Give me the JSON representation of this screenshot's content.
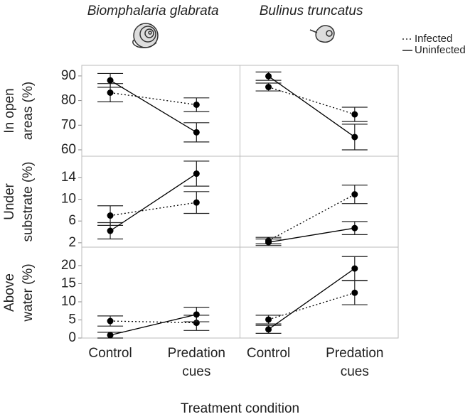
{
  "chart_data": {
    "type": "line",
    "columns": [
      "Biomphalaria glabrata",
      "Bulinus truncatus"
    ],
    "categories": [
      "Control",
      "Predation cues"
    ],
    "xlabel": "Treatment condition",
    "series": [
      {
        "name": "Infected",
        "dash": "dotted",
        "color": "#000000"
      },
      {
        "name": "Uninfected",
        "dash": "solid",
        "color": "#000000"
      }
    ],
    "rows": [
      {
        "ylabel": [
          "In open",
          "areas (%)"
        ],
        "ylim": [
          57.4,
          94.3
        ],
        "yticks": [
          60,
          70,
          80,
          90
        ],
        "panels": [
          {
            "series": [
              {
                "values": [
                  83.2,
                  78.3
                ],
                "errors": [
                  3.7,
                  2.8
                ]
              },
              {
                "values": [
                  88.2,
                  67.1
                ],
                "errors": [
                  2.8,
                  3.9
                ]
              }
            ]
          },
          {
            "series": [
              {
                "values": [
                  85.5,
                  74.4
                ],
                "errors": [
                  1.6,
                  2.9
                ]
              },
              {
                "values": [
                  89.9,
                  65.2
                ],
                "errors": [
                  1.7,
                  5.2
                ]
              }
            ]
          }
        ]
      },
      {
        "ylabel": [
          "Under",
          "substrate (%)"
        ],
        "ylim": [
          1.2,
          17.9
        ],
        "yticks": [
          2,
          6,
          10,
          14
        ],
        "panels": [
          {
            "series": [
              {
                "values": [
                  7.0,
                  9.4
                ],
                "errors": [
                  1.8,
                  2.0
                ]
              },
              {
                "values": [
                  4.2,
                  14.7
                ],
                "errors": [
                  1.5,
                  2.3
                ]
              }
            ]
          },
          {
            "series": [
              {
                "values": [
                  2.4,
                  10.9
                ],
                "errors": [
                  0.6,
                  1.7
                ]
              },
              {
                "values": [
                  2.1,
                  4.7
                ],
                "errors": [
                  0.6,
                  1.2
                ]
              }
            ]
          }
        ]
      },
      {
        "ylabel": [
          "Above",
          "water (%)"
        ],
        "ylim": [
          0,
          25.1
        ],
        "yticks": [
          0,
          5,
          10,
          15,
          20
        ],
        "panels": [
          {
            "series": [
              {
                "values": [
                  4.7,
                  4.2
                ],
                "errors": [
                  1.4,
                  2.1
                ]
              },
              {
                "values": [
                  0.8,
                  6.5
                ],
                "errors": [
                  0.8,
                  2.0
                ]
              }
            ]
          },
          {
            "series": [
              {
                "values": [
                  5.1,
                  12.5
                ],
                "errors": [
                  1.2,
                  3.3
                ]
              },
              {
                "values": [
                  2.4,
                  19.2
                ],
                "errors": [
                  1.1,
                  3.3
                ]
              }
            ]
          }
        ]
      }
    ]
  }
}
